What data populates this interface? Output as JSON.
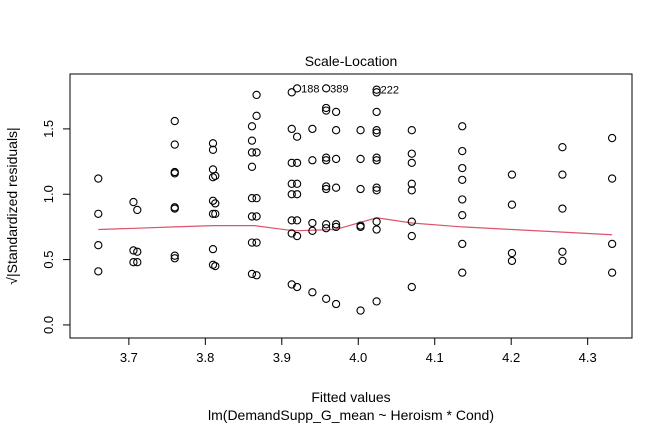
{
  "chart_data": {
    "type": "scatter",
    "title": "Scale-Location",
    "xlabel": "Fitted values",
    "subtitle": "lm(DemandSupp_G_mean ~ Heroism * Cond)",
    "ylabel": "√|Standardized residuals|",
    "xlim": [
      3.623,
      4.358
    ],
    "ylim": [
      -0.1,
      1.92
    ],
    "x_ticks": [
      3.7,
      3.8,
      3.9,
      4.0,
      4.1,
      4.2,
      4.3
    ],
    "x_tick_labels": [
      "3.7",
      "3.8",
      "3.9",
      "4.0",
      "4.1",
      "4.2",
      "4.3"
    ],
    "y_ticks": [
      0.0,
      0.5,
      1.0,
      1.5
    ],
    "y_tick_labels": [
      "0.0",
      "0.5",
      "1.0",
      "1.5"
    ],
    "grid": false,
    "smoother_color": "#DF536B",
    "point_color": "#000000",
    "points": [
      [
        3.66,
        1.12
      ],
      [
        3.66,
        0.85
      ],
      [
        3.66,
        0.61
      ],
      [
        3.66,
        0.41
      ],
      [
        3.706,
        0.94
      ],
      [
        3.711,
        0.88
      ],
      [
        3.706,
        0.57
      ],
      [
        3.711,
        0.56
      ],
      [
        3.706,
        0.48
      ],
      [
        3.711,
        0.48
      ],
      [
        3.76,
        1.56
      ],
      [
        3.76,
        1.38
      ],
      [
        3.76,
        1.17
      ],
      [
        3.76,
        1.16
      ],
      [
        3.76,
        0.9
      ],
      [
        3.76,
        0.89
      ],
      [
        3.76,
        0.53
      ],
      [
        3.76,
        0.51
      ],
      [
        3.81,
        1.39
      ],
      [
        3.81,
        1.34
      ],
      [
        3.81,
        1.19
      ],
      [
        3.81,
        1.13
      ],
      [
        3.813,
        1.14
      ],
      [
        3.81,
        0.95
      ],
      [
        3.813,
        0.93
      ],
      [
        3.81,
        0.85
      ],
      [
        3.813,
        0.85
      ],
      [
        3.81,
        0.58
      ],
      [
        3.81,
        0.46
      ],
      [
        3.813,
        0.45
      ],
      [
        3.867,
        1.76
      ],
      [
        3.867,
        1.6
      ],
      [
        3.861,
        1.52
      ],
      [
        3.861,
        1.41
      ],
      [
        3.861,
        1.32
      ],
      [
        3.867,
        1.32
      ],
      [
        3.861,
        1.21
      ],
      [
        3.861,
        0.97
      ],
      [
        3.867,
        0.97
      ],
      [
        3.861,
        0.83
      ],
      [
        3.867,
        0.83
      ],
      [
        3.861,
        0.63
      ],
      [
        3.867,
        0.63
      ],
      [
        3.861,
        0.39
      ],
      [
        3.867,
        0.38
      ],
      [
        3.913,
        1.78
      ],
      [
        3.92,
        1.81
      ],
      [
        3.913,
        1.5
      ],
      [
        3.92,
        1.44
      ],
      [
        3.913,
        1.24
      ],
      [
        3.92,
        1.24
      ],
      [
        3.913,
        1.08
      ],
      [
        3.92,
        1.08
      ],
      [
        3.913,
        1.0
      ],
      [
        3.92,
        1.0
      ],
      [
        3.913,
        0.8
      ],
      [
        3.92,
        0.8
      ],
      [
        3.913,
        0.7
      ],
      [
        3.92,
        0.68
      ],
      [
        3.913,
        0.31
      ],
      [
        3.92,
        0.29
      ],
      [
        3.94,
        1.5
      ],
      [
        3.94,
        1.26
      ],
      [
        3.94,
        0.78
      ],
      [
        3.94,
        0.72
      ],
      [
        3.94,
        0.25
      ],
      [
        3.958,
        1.81
      ],
      [
        3.958,
        1.66
      ],
      [
        3.958,
        1.64
      ],
      [
        3.958,
        1.28
      ],
      [
        3.958,
        1.26
      ],
      [
        3.958,
        1.06
      ],
      [
        3.958,
        1.04
      ],
      [
        3.958,
        0.77
      ],
      [
        3.958,
        0.74
      ],
      [
        3.958,
        0.2
      ],
      [
        3.971,
        1.63
      ],
      [
        3.971,
        1.49
      ],
      [
        3.971,
        1.27
      ],
      [
        3.971,
        1.05
      ],
      [
        3.971,
        0.77
      ],
      [
        3.971,
        0.75
      ],
      [
        3.971,
        0.16
      ],
      [
        4.003,
        1.49
      ],
      [
        4.003,
        1.27
      ],
      [
        4.003,
        1.04
      ],
      [
        4.003,
        0.76
      ],
      [
        4.003,
        0.75
      ],
      [
        4.003,
        0.11
      ],
      [
        4.024,
        1.8
      ],
      [
        4.024,
        1.78
      ],
      [
        4.024,
        1.63
      ],
      [
        4.024,
        1.49
      ],
      [
        4.024,
        1.47
      ],
      [
        4.024,
        1.28
      ],
      [
        4.024,
        1.26
      ],
      [
        4.024,
        1.05
      ],
      [
        4.024,
        1.03
      ],
      [
        4.024,
        0.79
      ],
      [
        4.024,
        0.73
      ],
      [
        4.024,
        0.18
      ],
      [
        4.07,
        1.49
      ],
      [
        4.07,
        1.31
      ],
      [
        4.07,
        1.24
      ],
      [
        4.07,
        1.08
      ],
      [
        4.07,
        1.03
      ],
      [
        4.07,
        0.79
      ],
      [
        4.07,
        0.68
      ],
      [
        4.07,
        0.29
      ],
      [
        4.136,
        1.52
      ],
      [
        4.136,
        1.33
      ],
      [
        4.136,
        1.2
      ],
      [
        4.136,
        1.11
      ],
      [
        4.136,
        0.96
      ],
      [
        4.136,
        0.84
      ],
      [
        4.136,
        0.62
      ],
      [
        4.136,
        0.4
      ],
      [
        4.201,
        1.15
      ],
      [
        4.201,
        0.92
      ],
      [
        4.201,
        0.55
      ],
      [
        4.201,
        0.49
      ],
      [
        4.267,
        1.36
      ],
      [
        4.267,
        1.15
      ],
      [
        4.267,
        0.89
      ],
      [
        4.267,
        0.56
      ],
      [
        4.267,
        0.49
      ],
      [
        4.332,
        1.43
      ],
      [
        4.332,
        1.12
      ],
      [
        4.332,
        0.62
      ],
      [
        4.332,
        0.4
      ]
    ],
    "labeled_points": [
      {
        "label": "188",
        "x": 3.92,
        "y": 1.81
      },
      {
        "label": "389",
        "x": 3.958,
        "y": 1.81
      },
      {
        "label": "222",
        "x": 4.024,
        "y": 1.8
      }
    ],
    "smoother": [
      [
        3.66,
        0.73
      ],
      [
        3.76,
        0.75
      ],
      [
        3.81,
        0.76
      ],
      [
        3.864,
        0.76
      ],
      [
        3.916,
        0.72
      ],
      [
        3.97,
        0.73
      ],
      [
        4.024,
        0.82
      ],
      [
        4.07,
        0.78
      ],
      [
        4.136,
        0.75
      ],
      [
        4.201,
        0.73
      ],
      [
        4.267,
        0.71
      ],
      [
        4.332,
        0.69
      ]
    ]
  }
}
